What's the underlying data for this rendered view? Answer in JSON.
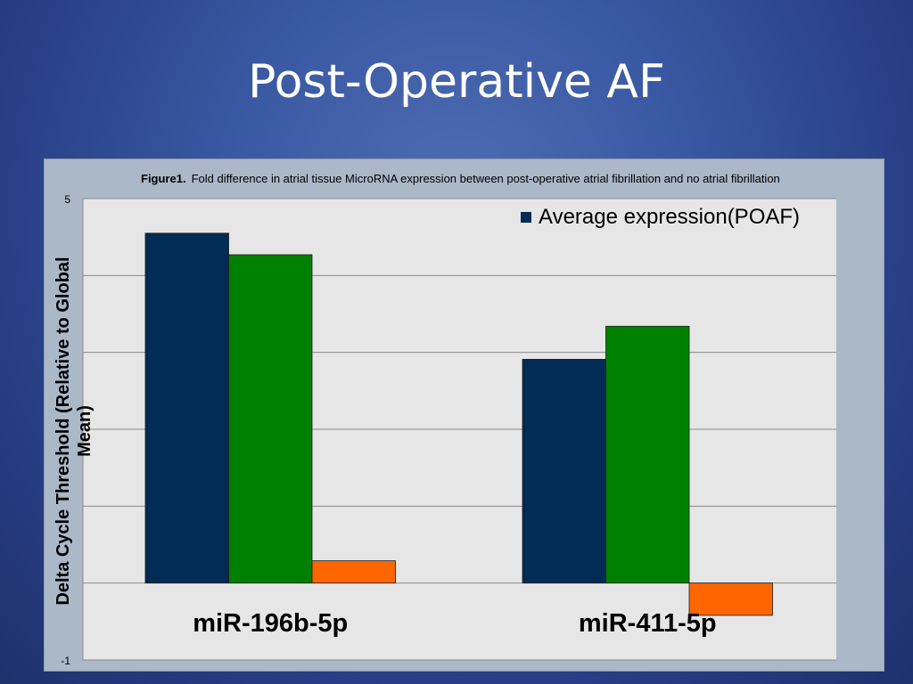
{
  "slide": {
    "title": "Post-Operative AF"
  },
  "caption": {
    "label": "Figure1.",
    "text": "Fold difference in atrial tissue MicroRNA expression between post-operative atrial fibrillation and no atrial fibrillation"
  },
  "chart_data": {
    "type": "bar",
    "categories": [
      "miR-196b-5p",
      "miR-411-5p"
    ],
    "series": [
      {
        "name": "Average expression(POAF)",
        "values": [
          4.55,
          2.91
        ],
        "color": "#002b54"
      },
      {
        "values": [
          4.27,
          3.34
        ],
        "color": "#008000"
      },
      {
        "values": [
          0.29,
          -0.42
        ],
        "color": "#ff6600"
      }
    ],
    "ylabel": "Delta Cycle Threshold (Relative to Global Mean)",
    "ylim": [
      -1,
      5
    ],
    "y_tick_labels": [
      "5",
      "-1"
    ],
    "grid": true,
    "legend_position": "top-right",
    "plot_background": "#e6e6e6"
  }
}
